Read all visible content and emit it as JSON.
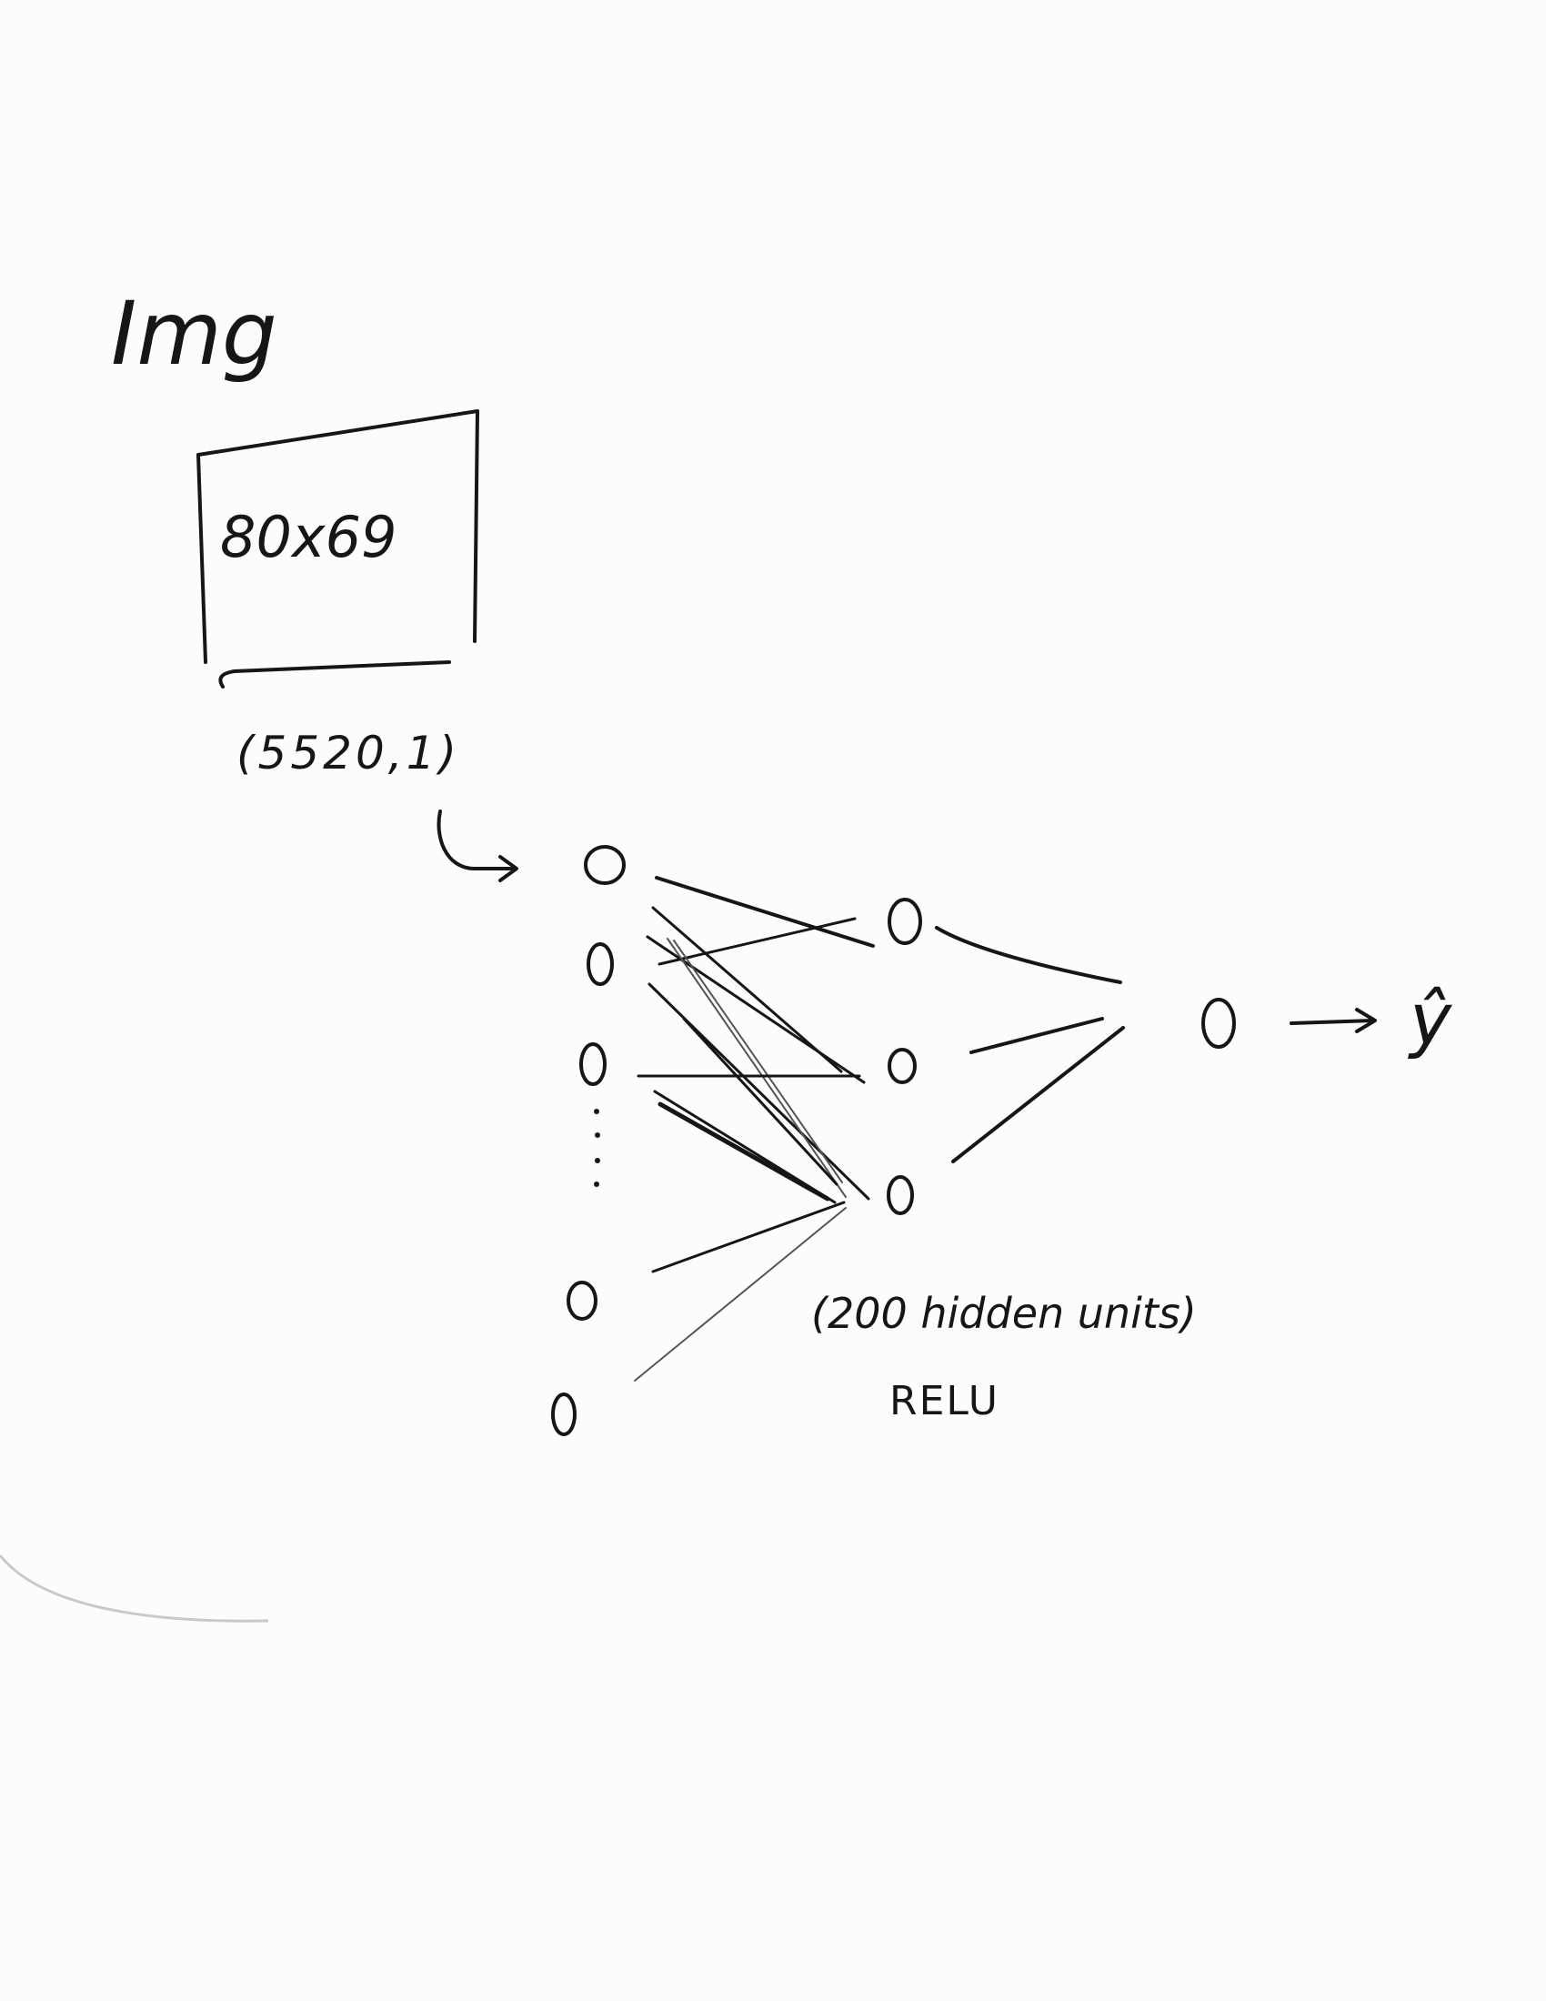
{
  "labels": {
    "input_title": "Img",
    "image_size": "80x69",
    "vector_shape": "(5520,1)",
    "hidden_units": "(200 hidden units)",
    "activation": "RELU",
    "output": "ŷ"
  },
  "network": {
    "input_nodes": 5,
    "hidden_nodes": 3,
    "output_nodes": 1,
    "input_ellipsis": true
  }
}
